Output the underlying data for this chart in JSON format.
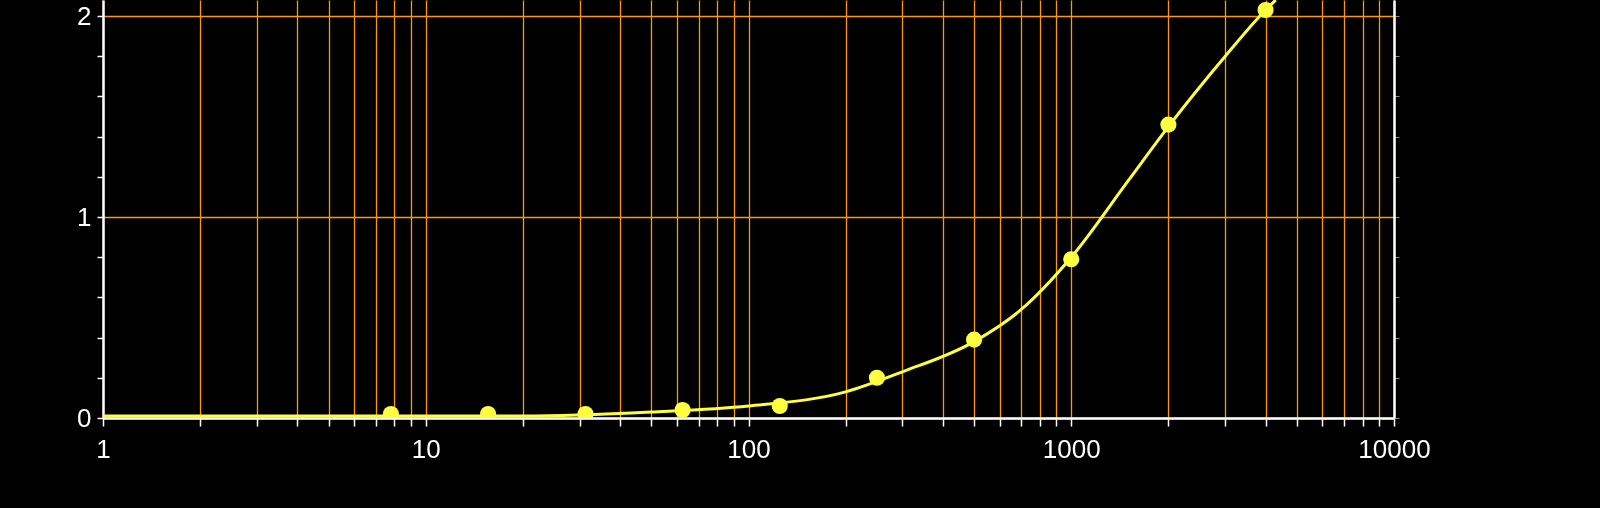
{
  "chart_data": {
    "type": "scatter",
    "log": "x",
    "grid": true,
    "xlim": [
      1,
      10000
    ],
    "ylim": [
      0,
      2.08
    ],
    "xticks": [
      1,
      {
        "value": 2,
        "label": null
      },
      {
        "value": 3,
        "label": null
      },
      {
        "value": 4,
        "label": null
      },
      {
        "value": 5,
        "label": null
      },
      {
        "value": 6,
        "label": null
      },
      {
        "value": 7,
        "label": null
      },
      {
        "value": 8,
        "label": null
      },
      {
        "value": 9,
        "label": null
      },
      10,
      {
        "value": 20,
        "label": null
      },
      {
        "value": 30,
        "label": null
      },
      {
        "value": 40,
        "label": null
      },
      {
        "value": 50,
        "label": null
      },
      {
        "value": 60,
        "label": null
      },
      {
        "value": 70,
        "label": null
      },
      {
        "value": 80,
        "label": null
      },
      {
        "value": 90,
        "label": null
      },
      100,
      {
        "value": 200,
        "label": null
      },
      {
        "value": 300,
        "label": null
      },
      {
        "value": 400,
        "label": null
      },
      {
        "value": 500,
        "label": null
      },
      {
        "value": 600,
        "label": null
      },
      {
        "value": 700,
        "label": null
      },
      {
        "value": 800,
        "label": null
      },
      {
        "value": 900,
        "label": null
      },
      1000,
      {
        "value": 2000,
        "label": null
      },
      {
        "value": 3000,
        "label": null
      },
      {
        "value": 4000,
        "label": null
      },
      {
        "value": 5000,
        "label": null
      },
      {
        "value": 6000,
        "label": null
      },
      {
        "value": 7000,
        "label": null
      },
      {
        "value": 8000,
        "label": null
      },
      {
        "value": 9000,
        "label": null
      },
      10000
    ],
    "yticks": [
      0,
      {
        "value": 0.2,
        "label": null
      },
      {
        "value": 0.4,
        "label": null
      },
      {
        "value": 0.6,
        "label": null
      },
      {
        "value": 0.8,
        "label": null
      },
      1,
      {
        "value": 1.2,
        "label": null
      },
      {
        "value": 1.4,
        "label": null
      },
      {
        "value": 1.6,
        "label": null
      },
      {
        "value": 1.8,
        "label": null
      },
      2
    ],
    "series": [
      {
        "marker": "circle",
        "color": "#ffff40",
        "x": [
          7.8,
          15.6,
          31.25,
          62.5,
          125,
          250,
          500,
          1000,
          2000,
          4000
        ],
        "values": [
          0.02,
          0.02,
          0.02,
          0.04,
          0.06,
          0.2,
          0.39,
          0.79,
          1.46,
          2.03
        ]
      },
      {
        "type": "line",
        "color": "#ffff40",
        "x": [
          1,
          20,
          50,
          100,
          200,
          300,
          500,
          700,
          1000,
          1500,
          2000,
          3000,
          4000,
          4300
        ],
        "values": [
          0.01,
          0.01,
          0.03,
          0.06,
          0.13,
          0.23,
          0.38,
          0.54,
          0.8,
          1.18,
          1.45,
          1.8,
          2.03,
          2.08
        ]
      }
    ]
  }
}
